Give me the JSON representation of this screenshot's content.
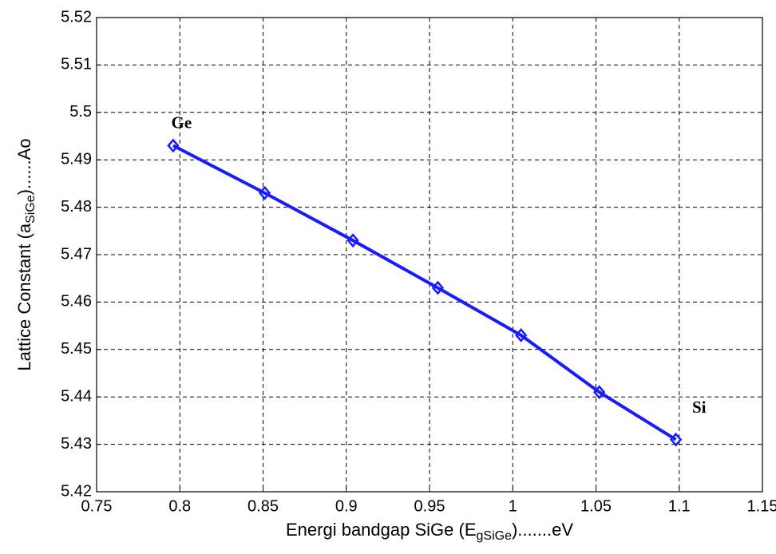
{
  "chart_data": {
    "type": "line",
    "xlabel": [
      "Energi bandgap SiGe (E",
      "gSiGe",
      ").......eV"
    ],
    "ylabel": [
      "Lattice Constant (a",
      "SiGe",
      ")......Ao"
    ],
    "x": [
      0.796,
      0.851,
      0.904,
      0.955,
      1.005,
      1.052,
      1.098
    ],
    "series": [
      {
        "name": "SiGe",
        "color": "#1a1aff",
        "values": [
          5.493,
          5.483,
          5.473,
          5.463,
          5.453,
          5.441,
          5.431
        ]
      }
    ],
    "xlim": [
      0.75,
      1.15
    ],
    "xticks": [
      0.75,
      0.8,
      0.85,
      0.9,
      0.95,
      1,
      1.05,
      1.1,
      1.15
    ],
    "ylim": [
      5.42,
      5.52
    ],
    "yticks": [
      5.42,
      5.43,
      5.44,
      5.45,
      5.46,
      5.47,
      5.48,
      5.49,
      5.5,
      5.51,
      5.52
    ],
    "grid": true,
    "annotations": [
      {
        "text": "Ge",
        "x": 0.801,
        "y": 5.4975
      },
      {
        "text": "Si",
        "x": 1.112,
        "y": 5.4375
      }
    ]
  }
}
